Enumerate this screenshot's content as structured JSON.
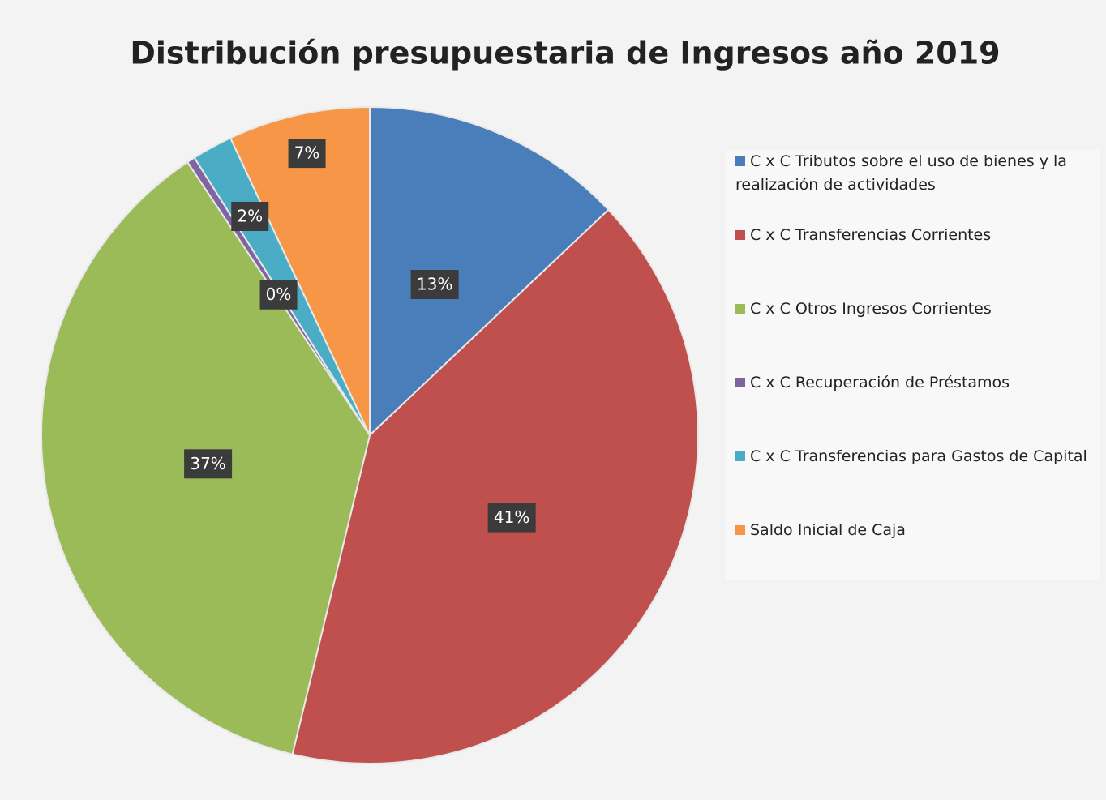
{
  "chart_data": {
    "type": "pie",
    "title": "Distribución presupuestaria de Ingresos año 2019",
    "categories": [
      "C x C Tributos sobre el uso de bienes y la realización de actividades",
      "C x C Transferencias Corrientes",
      "C x C Otros Ingresos Corrientes",
      "C x C Recuperación de Préstamos",
      "C x C Transferencias para Gastos de Capital",
      "Saldo Inicial de Caja"
    ],
    "values": [
      13,
      41,
      37,
      0.4,
      2,
      7
    ],
    "value_labels": [
      "13%",
      "41%",
      "37%",
      "0%",
      "2%",
      "7%"
    ],
    "colors": [
      "#4a7ebb",
      "#c0504d",
      "#9bbb59",
      "#8064a2",
      "#4bacc6",
      "#f79646"
    ],
    "legend": "right"
  }
}
